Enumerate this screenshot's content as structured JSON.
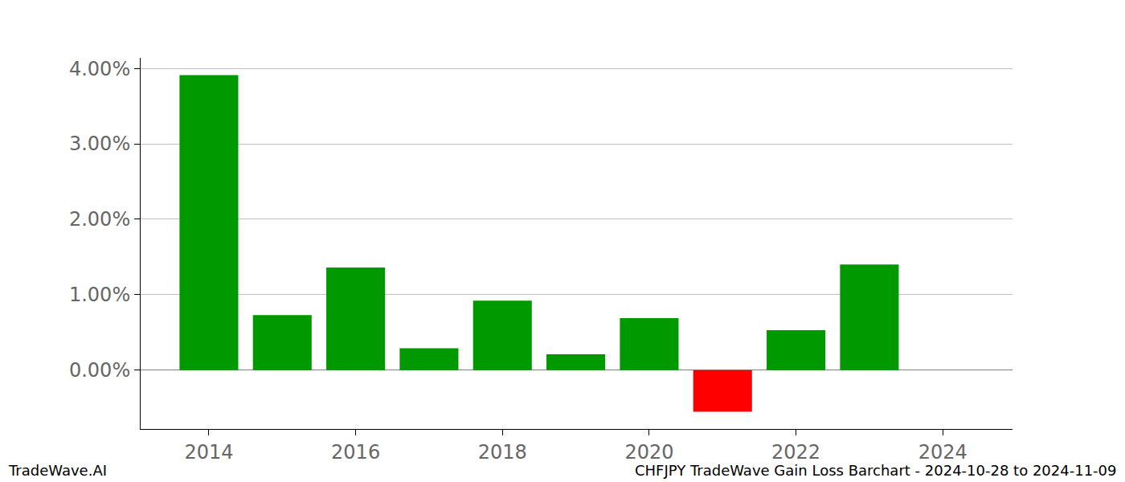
{
  "chart_data": {
    "type": "bar",
    "x": [
      2014,
      2015,
      2016,
      2017,
      2018,
      2019,
      2020,
      2021,
      2022,
      2023
    ],
    "values": [
      3.91,
      0.73,
      1.36,
      0.29,
      0.92,
      0.21,
      0.69,
      -0.55,
      0.53,
      1.4
    ],
    "colors": [
      "#009900",
      "#009900",
      "#009900",
      "#009900",
      "#009900",
      "#009900",
      "#009900",
      "#ff0000",
      "#009900",
      "#009900"
    ],
    "xlim": [
      2013.07,
      2024.95
    ],
    "xticks": [
      2014,
      2016,
      2018,
      2020,
      2022,
      2024
    ],
    "ylim": [
      -0.78,
      4.14
    ],
    "yticks": [
      {
        "value": 0,
        "label": "0.00%"
      },
      {
        "value": 1,
        "label": "1.00%"
      },
      {
        "value": 2,
        "label": "2.00%"
      },
      {
        "value": 3,
        "label": "3.00%"
      },
      {
        "value": 4,
        "label": "4.00%"
      }
    ],
    "grid": true,
    "annotations": [
      "TradeWave.AI",
      "CHFJPY TradeWave Gain Loss Barchart - 2024-10-28 to 2024-11-09"
    ]
  }
}
